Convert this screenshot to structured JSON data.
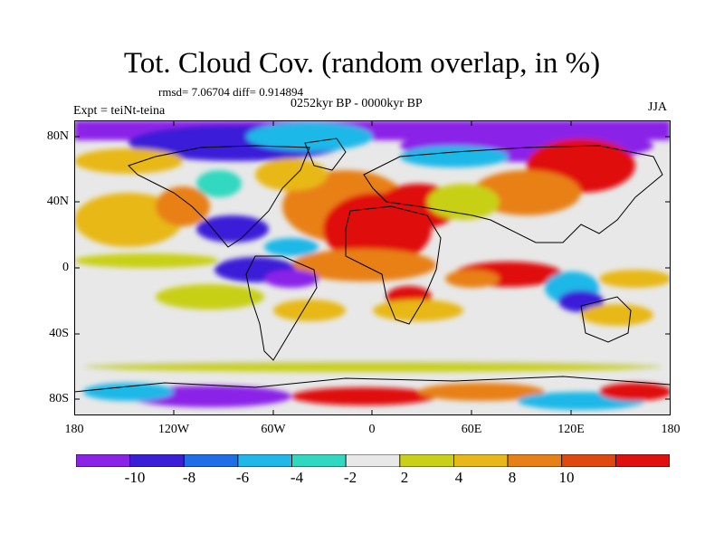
{
  "header": {
    "title": "Tot. Cloud Cov. (random overlap, in %)",
    "stats": "rmsd= 7.06704 diff= 0.914894",
    "period": "0252kyr BP - 0000kyr BP",
    "experiment": "Expt = teiNt-teina",
    "season": "JJA"
  },
  "map": {
    "lat_ticks": [
      "80N",
      "40N",
      "0",
      "40S",
      "80S"
    ],
    "lon_ticks": [
      "180",
      "120W",
      "60W",
      "0",
      "60E",
      "120E",
      "180"
    ],
    "projection": "cylindrical equidistant",
    "variable": "total cloud cover difference"
  },
  "colorbar": {
    "colors": [
      "#8b22e8",
      "#3b1fd8",
      "#1f6ee8",
      "#1fb8e8",
      "#30d8c0",
      "#e8e8e8",
      "#c8d018",
      "#e8b818",
      "#e88018",
      "#e04810",
      "#e01010"
    ],
    "labels": [
      "-10",
      "-8",
      "-6",
      "-4",
      "-2",
      "2",
      "4",
      "8",
      "10"
    ]
  }
}
